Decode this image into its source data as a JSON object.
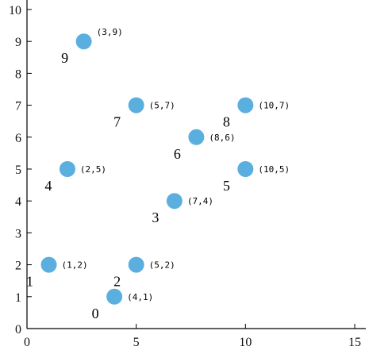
{
  "chart_data": {
    "type": "scatter",
    "title": "",
    "xlabel": "",
    "ylabel": "",
    "xlim": [
      0,
      15
    ],
    "ylim": [
      0,
      10
    ],
    "x_ticks": [
      "0",
      "5",
      "10",
      "15"
    ],
    "y_ticks": [
      "0",
      "1",
      "2",
      "3",
      "4",
      "5",
      "6",
      "7",
      "8",
      "9",
      "10"
    ],
    "grid": false,
    "marker_color": "#5aafdf",
    "points": [
      {
        "index": "0",
        "label": "(4,1)",
        "x": 4.0,
        "y": 1
      },
      {
        "index": "1",
        "label": "(1,2)",
        "x": 1.0,
        "y": 2
      },
      {
        "index": "2",
        "label": "(5,2)",
        "x": 5.0,
        "y": 2
      },
      {
        "index": "3",
        "label": "(7,4)",
        "x": 6.75,
        "y": 4
      },
      {
        "index": "4",
        "label": "(2,5)",
        "x": 1.85,
        "y": 5
      },
      {
        "index": "5",
        "label": "(10,5)",
        "x": 10.0,
        "y": 5
      },
      {
        "index": "6",
        "label": "(8,6)",
        "x": 7.75,
        "y": 6
      },
      {
        "index": "7",
        "label": "(5,7)",
        "x": 5.0,
        "y": 7
      },
      {
        "index": "8",
        "label": "(10,7)",
        "x": 10.0,
        "y": 7
      },
      {
        "index": "9",
        "label": "(3,9)",
        "x": 2.6,
        "y": 9
      }
    ]
  }
}
